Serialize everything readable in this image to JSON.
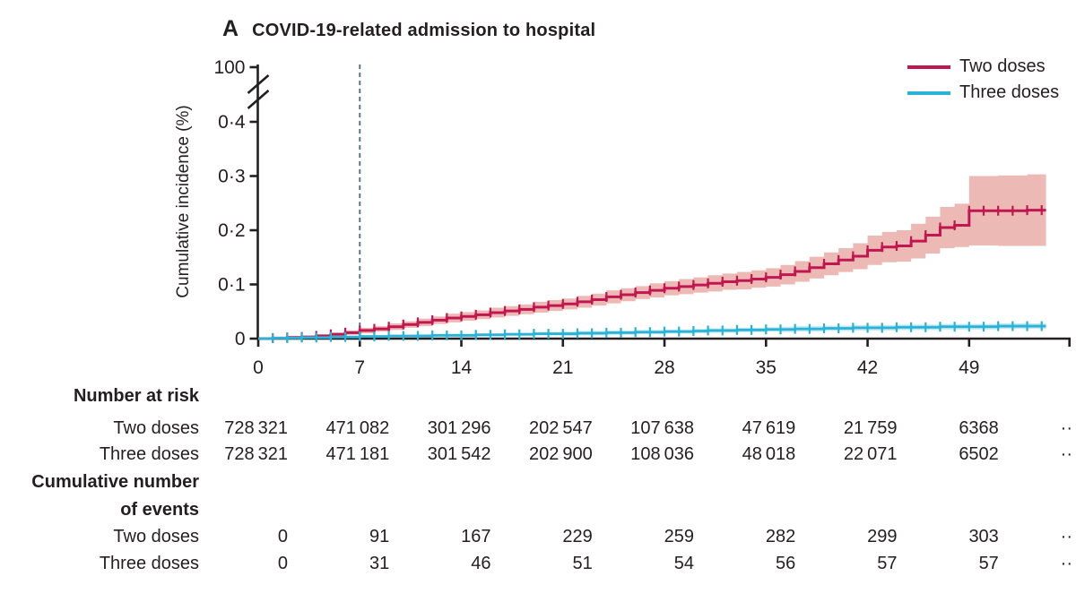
{
  "title": {
    "panel": "A",
    "text": "COVID-19-related admission to hospital"
  },
  "legend": [
    {
      "label": "Two doses",
      "color": "#c11750"
    },
    {
      "label": "Three doses",
      "color": "#2ab3d6"
    }
  ],
  "colors": {
    "axis": "#231f20",
    "text": "#231f20",
    "reference_line": "#5b7588",
    "two_doses_line": "#c11750",
    "two_doses_band": "#edb9b4",
    "three_doses_line": "#2ab3d6",
    "three_doses_band": "#c3e8f2"
  },
  "chart_data": {
    "type": "line",
    "subtype": "cumulative-incidence-step-with-ci-bands-and-censor-ticks",
    "title": "COVID-19-related admission to hospital",
    "xlabel": "",
    "ylabel": "Cumulative incidence (%)",
    "x_ticks": [
      0,
      7,
      14,
      21,
      28,
      35,
      42,
      49
    ],
    "x_axis_end": 56,
    "x_unit_days": 1,
    "y_ticks": [
      {
        "label": "100",
        "value": "axis-break-top"
      },
      {
        "label": "0·4",
        "value": 0.4
      },
      {
        "label": "0·3",
        "value": 0.3
      },
      {
        "label": "0·2",
        "value": 0.2
      },
      {
        "label": "0·1",
        "value": 0.1
      },
      {
        "label": "0",
        "value": 0
      }
    ],
    "axis_break": true,
    "reference_line_x": 7,
    "grid": false,
    "legend_position": "top-right",
    "series": [
      {
        "name": "Two doses",
        "color": "#c11750",
        "band_color": "#edb9b4",
        "day_step": 1,
        "values": [
          0,
          0.001,
          0.002,
          0.003,
          0.005,
          0.008,
          0.011,
          0.015,
          0.018,
          0.022,
          0.026,
          0.03,
          0.034,
          0.038,
          0.041,
          0.044,
          0.048,
          0.051,
          0.054,
          0.058,
          0.061,
          0.064,
          0.068,
          0.072,
          0.077,
          0.081,
          0.085,
          0.089,
          0.093,
          0.096,
          0.099,
          0.102,
          0.105,
          0.107,
          0.11,
          0.113,
          0.118,
          0.124,
          0.131,
          0.138,
          0.145,
          0.152,
          0.163,
          0.169,
          0.171,
          0.18,
          0.191,
          0.205,
          0.209,
          0.236,
          0.236,
          0.236,
          0.236,
          0.237,
          0.237
        ],
        "ci_half_width": [
          0,
          0.001,
          0.002,
          0.002,
          0.003,
          0.003,
          0.004,
          0.005,
          0.005,
          0.006,
          0.006,
          0.007,
          0.007,
          0.008,
          0.008,
          0.008,
          0.009,
          0.009,
          0.009,
          0.01,
          0.01,
          0.01,
          0.011,
          0.011,
          0.012,
          0.012,
          0.012,
          0.013,
          0.013,
          0.014,
          0.014,
          0.015,
          0.015,
          0.016,
          0.016,
          0.017,
          0.018,
          0.019,
          0.02,
          0.021,
          0.022,
          0.024,
          0.027,
          0.028,
          0.029,
          0.032,
          0.034,
          0.038,
          0.04,
          0.064,
          0.064,
          0.065,
          0.065,
          0.066,
          0.066
        ]
      },
      {
        "name": "Three doses",
        "color": "#2ab3d6",
        "band_color": "#c3e8f2",
        "day_step": 1,
        "values": [
          0,
          0.001,
          0.001,
          0.002,
          0.002,
          0.003,
          0.003,
          0.004,
          0.004,
          0.005,
          0.005,
          0.005,
          0.006,
          0.006,
          0.006,
          0.007,
          0.007,
          0.008,
          0.008,
          0.009,
          0.009,
          0.009,
          0.01,
          0.01,
          0.011,
          0.011,
          0.012,
          0.012,
          0.013,
          0.013,
          0.014,
          0.015,
          0.015,
          0.016,
          0.016,
          0.017,
          0.017,
          0.018,
          0.018,
          0.019,
          0.019,
          0.02,
          0.02,
          0.02,
          0.021,
          0.021,
          0.021,
          0.022,
          0.022,
          0.022,
          0.022,
          0.023,
          0.023,
          0.023,
          0.023
        ],
        "ci_half_width": [
          0,
          0.002,
          0.002,
          0.002,
          0.002,
          0.002,
          0.002,
          0.002,
          0.002,
          0.002,
          0.002,
          0.003,
          0.003,
          0.003,
          0.003,
          0.003,
          0.003,
          0.003,
          0.003,
          0.003,
          0.003,
          0.004,
          0.004,
          0.004,
          0.004,
          0.004,
          0.004,
          0.004,
          0.004,
          0.004,
          0.004,
          0.004,
          0.004,
          0.004,
          0.004,
          0.004,
          0.005,
          0.005,
          0.005,
          0.005,
          0.005,
          0.005,
          0.005,
          0.005,
          0.005,
          0.005,
          0.005,
          0.005,
          0.005,
          0.005,
          0.005,
          0.005,
          0.005,
          0.005,
          0.005
        ]
      }
    ]
  },
  "risk_table": {
    "header": "Number at risk",
    "rows": [
      {
        "label": "Two doses",
        "values": [
          "728 321",
          "471 082",
          "301 296",
          "202 547",
          "107 638",
          "47 619",
          "21 759",
          "6368",
          "··"
        ]
      },
      {
        "label": "Three doses",
        "values": [
          "728 321",
          "471 181",
          "301 542",
          "202 900",
          "108 036",
          "48 018",
          "22 071",
          "6502",
          "··"
        ]
      }
    ],
    "events_header": [
      "Cumulative number",
      "of events"
    ],
    "events_rows": [
      {
        "label": "Two doses",
        "values": [
          "0",
          "91",
          "167",
          "229",
          "259",
          "282",
          "299",
          "303",
          "··"
        ]
      },
      {
        "label": "Three doses",
        "values": [
          "0",
          "31",
          "46",
          "51",
          "54",
          "56",
          "57",
          "57",
          "··"
        ]
      }
    ]
  }
}
